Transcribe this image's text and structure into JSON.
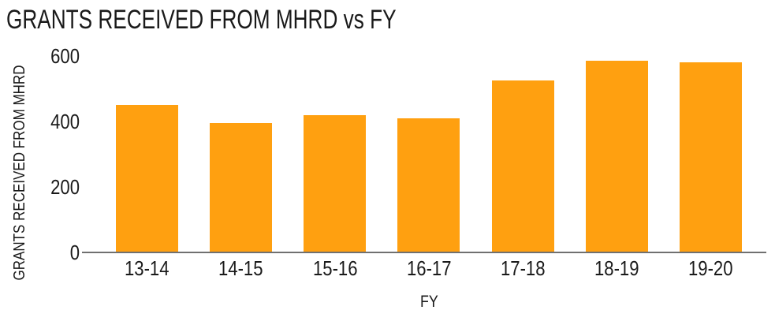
{
  "chart_data": {
    "type": "bar",
    "title": "GRANTS RECEIVED FROM MHRD vs FY",
    "xlabel": "FY",
    "ylabel": "GRANTS RECEIVED FROM MHRD",
    "categories": [
      "13-14",
      "14-15",
      "15-16",
      "16-17",
      "17-18",
      "18-19",
      "19-20"
    ],
    "values": [
      450,
      395,
      420,
      410,
      525,
      585,
      580
    ],
    "yticks": [
      0,
      200,
      400,
      600
    ],
    "ylim": [
      0,
      600
    ],
    "grid": false,
    "legend": false,
    "bar_color": "#FFA010",
    "axis_color": "#707070",
    "text_color": "#1A1A1A",
    "background": "#FFFFFF"
  }
}
